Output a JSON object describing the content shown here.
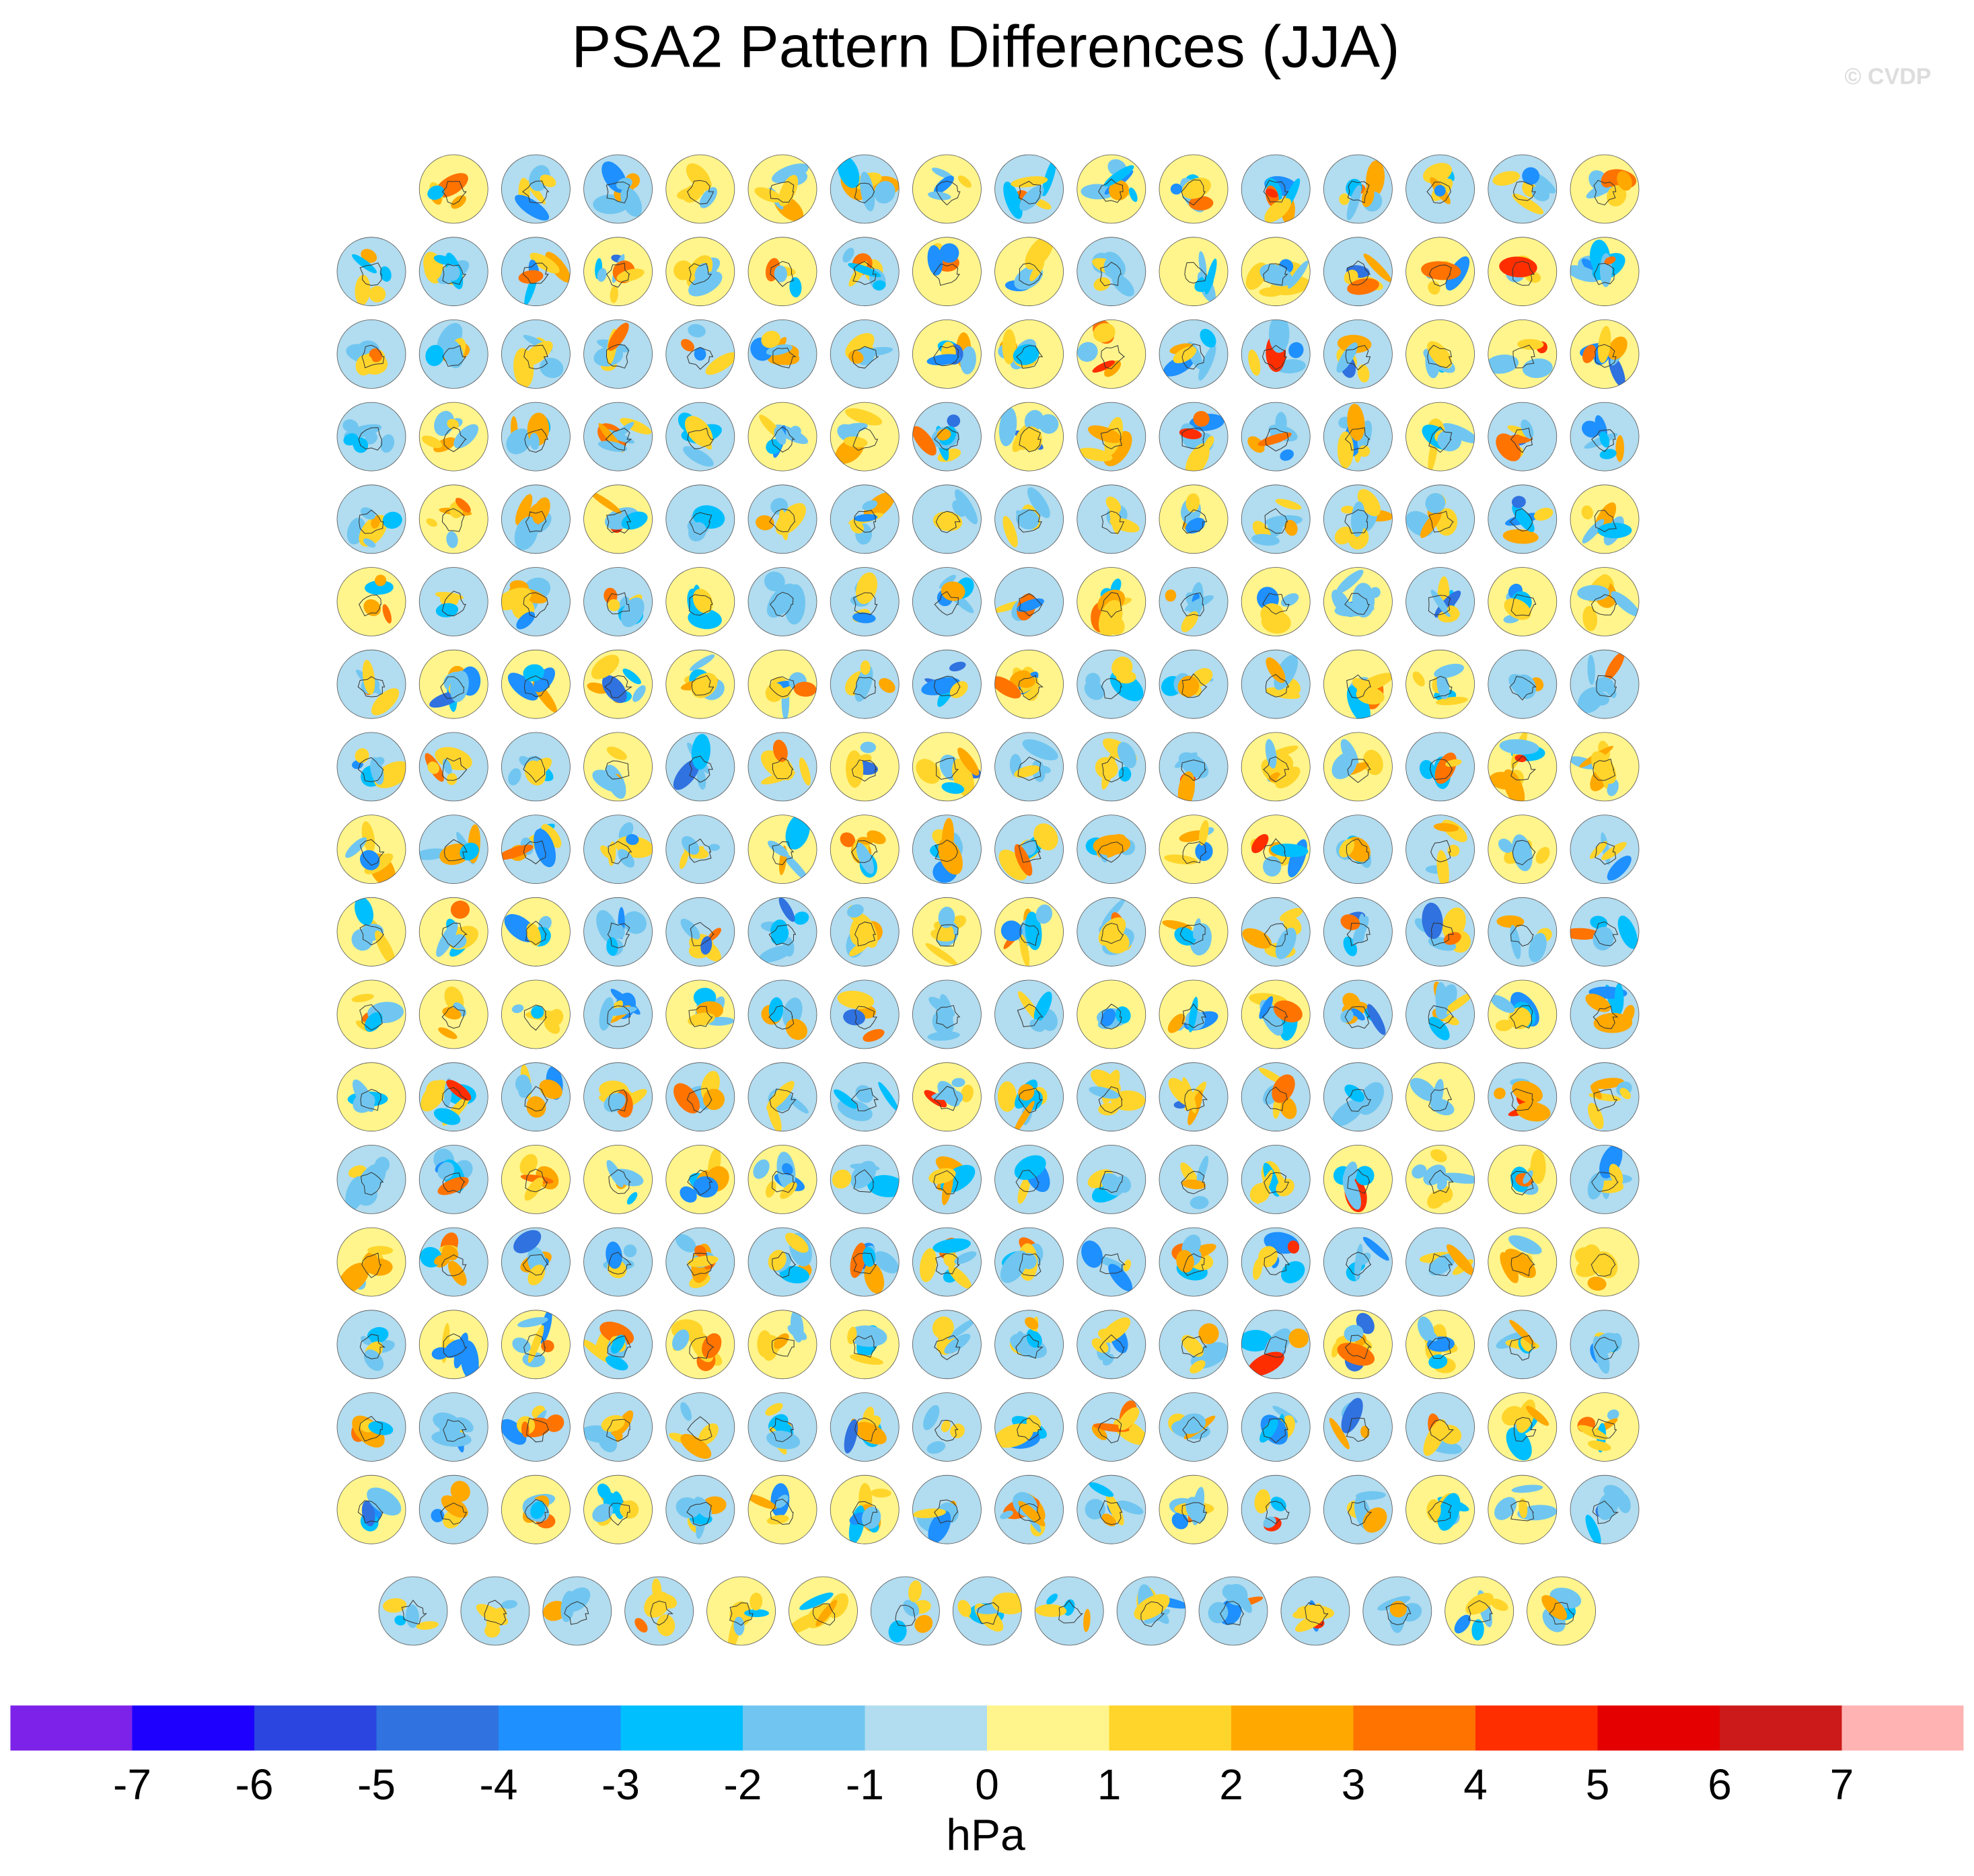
{
  "title": "PSA2 Pattern Differences (JJA)",
  "watermark": "© CVDP",
  "colorbar": {
    "colors": [
      "#7d22e8",
      "#1e00ff",
      "#2a45e0",
      "#2f72e0",
      "#1e90ff",
      "#00bfff",
      "#70c6f0",
      "#b2dcef",
      "#fff58c",
      "#ffd52b",
      "#ffa800",
      "#ff7300",
      "#ff2e00",
      "#e40000",
      "#cc1a1a",
      "#ffb3b3"
    ],
    "ticks": [
      -7,
      -6,
      -5,
      -4,
      -3,
      -2,
      -1,
      0,
      1,
      2,
      3,
      4,
      5,
      6,
      7
    ],
    "label": "hPa"
  }
}
